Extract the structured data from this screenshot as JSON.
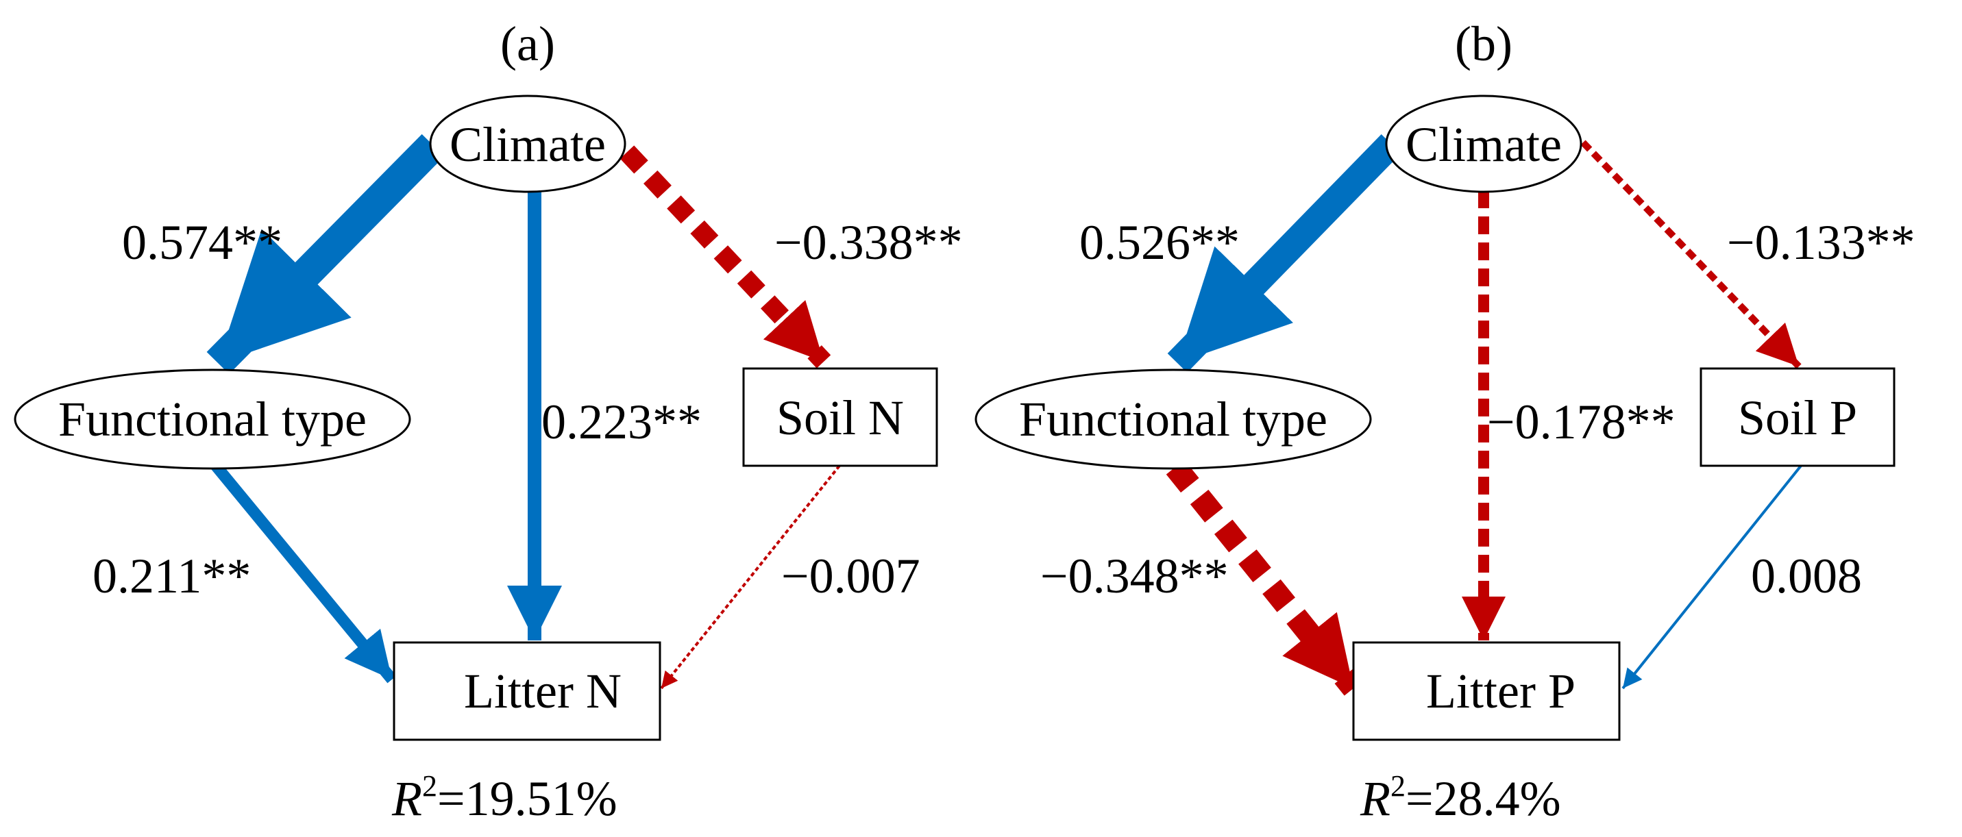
{
  "colors": {
    "positive": "#0070C0",
    "negative": "#C00000"
  },
  "legend_note": "solid blue = positive path, dashed red = negative path, width ~ coefficient",
  "panels": [
    {
      "label": "(a)",
      "nodes": {
        "climate": "Climate",
        "functional": "Functional type",
        "soil": "Soil N",
        "litter": "Litter N"
      },
      "paths": {
        "climate_functional": "0.574**",
        "climate_soil": "−0.338**",
        "climate_litter": "0.223**",
        "functional_litter": "0.211**",
        "soil_litter": "−0.007"
      },
      "r2": {
        "symbol": "R",
        "sup": "2",
        "value": "=19.51%"
      }
    },
    {
      "label": "(b)",
      "nodes": {
        "climate": "Climate",
        "functional": "Functional type",
        "soil": "Soil P",
        "litter": "Litter P"
      },
      "paths": {
        "climate_functional": "0.526**",
        "climate_soil": "−0.133**",
        "climate_litter": "−0.178**",
        "functional_litter": "−0.348**",
        "soil_litter": "0.008"
      },
      "r2": {
        "symbol": "R",
        "sup": "2",
        "value": "=28.4%"
      }
    }
  ]
}
